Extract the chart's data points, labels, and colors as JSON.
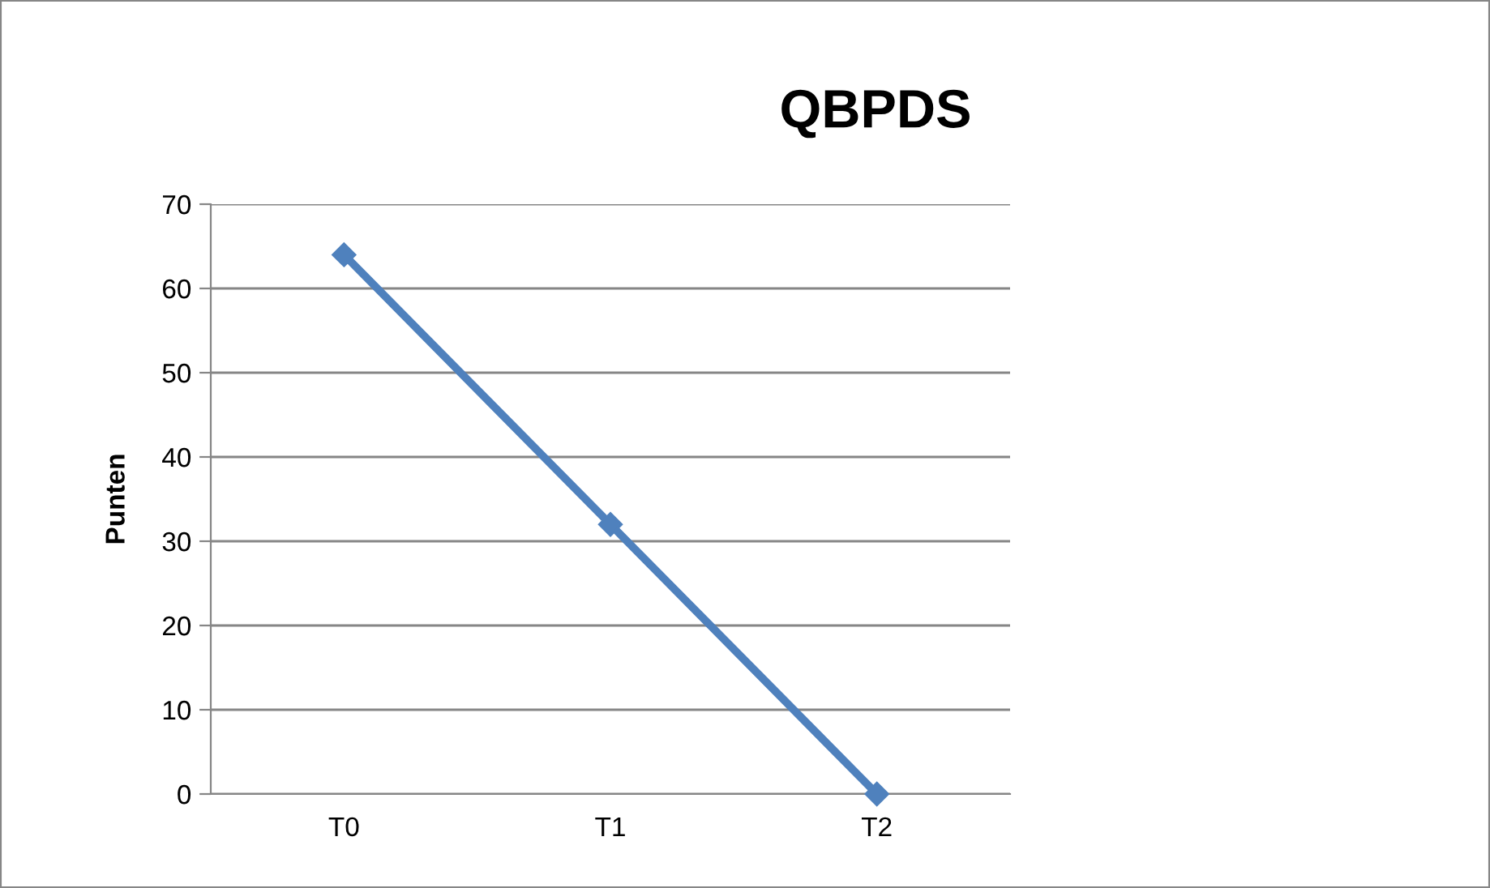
{
  "chart_data": {
    "type": "line",
    "title": "QBPDS",
    "ylabel": "Punten",
    "categories": [
      "T0",
      "T1",
      "T2"
    ],
    "series": [
      {
        "color": "#4f81bd",
        "values": [
          64,
          32,
          0
        ]
      }
    ],
    "ylim": [
      0,
      70
    ],
    "yticks": [
      0,
      10,
      20,
      30,
      40,
      50,
      60,
      70
    ],
    "grid": "y",
    "marker": "diamond",
    "line_style": "solid"
  }
}
